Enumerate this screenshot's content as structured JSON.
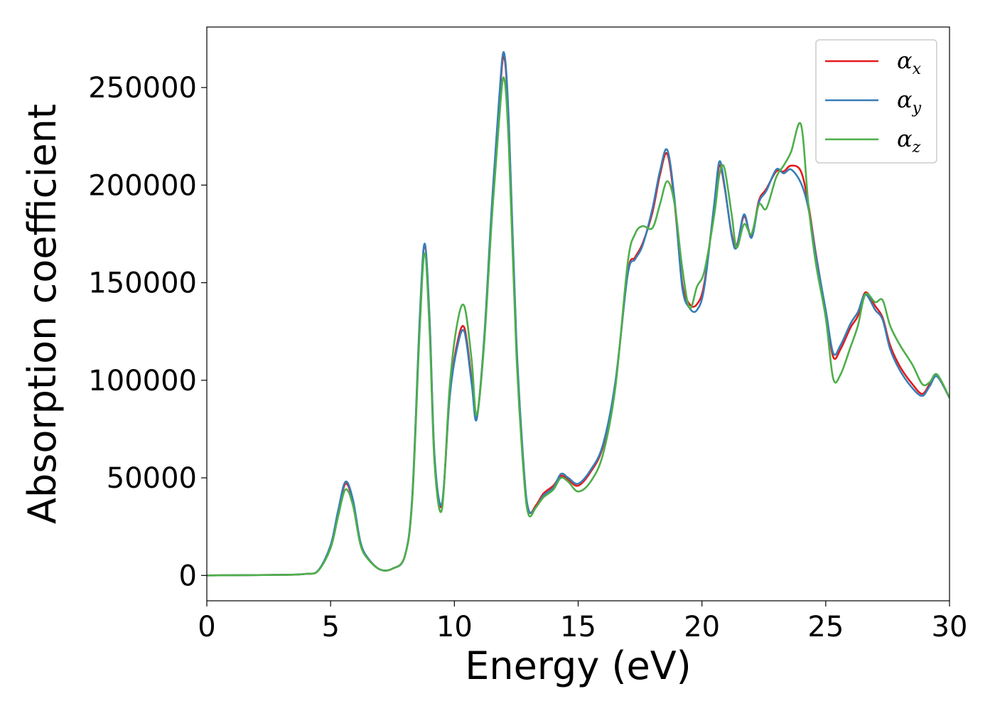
{
  "chart_data": {
    "type": "line",
    "xlabel": "Energy (eV)",
    "ylabel": "Absorption coefficient",
    "xlim": [
      0,
      30
    ],
    "ylim": [
      -13000,
      281000
    ],
    "xticks": [
      0,
      5,
      10,
      15,
      20,
      25,
      30
    ],
    "yticks": [
      0,
      50000,
      100000,
      150000,
      200000,
      250000
    ],
    "grid": false,
    "legend_position": "top-right",
    "x": [
      0,
      3,
      4,
      4.5,
      5,
      5.3,
      5.6,
      5.9,
      6.2,
      6.5,
      7,
      7.5,
      8,
      8.3,
      8.6,
      8.8,
      9.0,
      9.2,
      9.5,
      9.8,
      10.1,
      10.4,
      10.7,
      10.9,
      11.2,
      11.5,
      11.8,
      12.0,
      12.2,
      12.5,
      12.8,
      13.0,
      13.3,
      13.6,
      14.0,
      14.3,
      14.6,
      15.0,
      15.5,
      16.0,
      16.5,
      17.0,
      17.3,
      17.6,
      18.0,
      18.3,
      18.6,
      18.9,
      19.2,
      19.5,
      19.8,
      20.1,
      20.5,
      20.7,
      20.9,
      21.2,
      21.4,
      21.7,
      22.0,
      22.3,
      22.6,
      23.0,
      23.3,
      23.6,
      24.0,
      24.3,
      24.6,
      25.0,
      25.3,
      25.6,
      26.0,
      26.3,
      26.6,
      27.0,
      27.3,
      27.6,
      28.0,
      28.5,
      28.9,
      29.2,
      29.5,
      30.0
    ],
    "series": [
      {
        "name": "α_x",
        "color": "#e41a1c",
        "values": [
          0,
          300,
          800,
          2500,
          15000,
          32000,
          47000,
          38000,
          17000,
          9000,
          3000,
          3500,
          10000,
          40000,
          130000,
          168000,
          130000,
          60000,
          36000,
          90000,
          118000,
          127000,
          100000,
          81000,
          120000,
          185000,
          240000,
          266000,
          230000,
          120000,
          55000,
          33000,
          36000,
          42000,
          46000,
          51000,
          49000,
          46000,
          53000,
          66000,
          98000,
          155000,
          163000,
          170000,
          186000,
          205000,
          216000,
          190000,
          150000,
          139000,
          139000,
          150000,
          190000,
          210000,
          200000,
          175000,
          169000,
          184000,
          174000,
          192000,
          198000,
          207000,
          207000,
          210000,
          207000,
          190000,
          165000,
          135000,
          112000,
          116000,
          127000,
          133000,
          145000,
          138000,
          132000,
          118000,
          107000,
          98000,
          93000,
          98000,
          102000,
          91000
        ]
      },
      {
        "name": "α_y",
        "color": "#377eb8",
        "values": [
          0,
          300,
          800,
          2600,
          15500,
          33000,
          48000,
          39000,
          17500,
          9000,
          3000,
          3500,
          10000,
          41000,
          132000,
          170000,
          131000,
          61000,
          37000,
          90000,
          116000,
          125000,
          98000,
          80000,
          121000,
          187000,
          243000,
          268000,
          232000,
          122000,
          56000,
          33500,
          35000,
          41000,
          45000,
          52000,
          50000,
          47000,
          54000,
          67000,
          99000,
          154000,
          162000,
          169000,
          188000,
          207000,
          218000,
          192000,
          148000,
          137000,
          136000,
          148000,
          191000,
          212000,
          201000,
          174000,
          168000,
          185000,
          173000,
          191000,
          197000,
          208000,
          206000,
          208000,
          201000,
          188000,
          164000,
          136000,
          114000,
          118000,
          129000,
          135000,
          144000,
          136000,
          131000,
          116000,
          105000,
          96000,
          92000,
          97000,
          102000,
          91000
        ]
      },
      {
        "name": "α_z",
        "color": "#4daf4a",
        "values": [
          0,
          300,
          800,
          2400,
          14000,
          30000,
          44000,
          36000,
          16000,
          8500,
          3000,
          3500,
          10000,
          39000,
          126000,
          165000,
          125000,
          57000,
          34000,
          95000,
          128000,
          138000,
          110000,
          82000,
          118000,
          180000,
          232000,
          255000,
          220000,
          115000,
          52000,
          31000,
          35000,
          40000,
          44000,
          50000,
          48000,
          43000,
          48000,
          62000,
          96000,
          160000,
          175000,
          179000,
          178000,
          190000,
          202000,
          190000,
          158000,
          137000,
          148000,
          156000,
          185000,
          205000,
          209000,
          185000,
          168000,
          180000,
          175000,
          190000,
          188000,
          204000,
          210000,
          217000,
          231000,
          190000,
          160000,
          132000,
          101000,
          103000,
          117000,
          128000,
          144000,
          140000,
          141000,
          128000,
          118000,
          108000,
          98000,
          99000,
          103000,
          91000
        ]
      }
    ]
  },
  "legend": {
    "items": [
      {
        "base": "α",
        "sub": "x",
        "color": "#e41a1c"
      },
      {
        "base": "α",
        "sub": "y",
        "color": "#377eb8"
      },
      {
        "base": "α",
        "sub": "z",
        "color": "#4daf4a"
      }
    ]
  }
}
